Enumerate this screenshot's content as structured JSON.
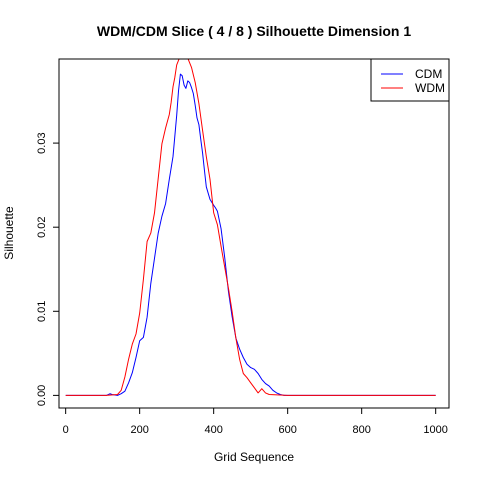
{
  "chart_data": {
    "type": "line",
    "title": "WDM/CDM Slice ( 4 / 8 )  Silhouette Dimension 1",
    "xlabel": "Grid Sequence",
    "ylabel": "Silhouette",
    "xlim": [
      -18,
      1036
    ],
    "ylim": [
      -0.0015,
      0.04
    ],
    "xticks": [
      0,
      200,
      400,
      600,
      800,
      1000
    ],
    "xtick_labels": [
      "0",
      "200",
      "400",
      "600",
      "800",
      "1000"
    ],
    "yticks": [
      0,
      0.01,
      0.02,
      0.03
    ],
    "ytick_labels": [
      "0.00",
      "0.01",
      "0.02",
      "0.03"
    ],
    "grid": false,
    "legend_position": "top-right",
    "series": [
      {
        "name": "CDM",
        "color": "#0000ff",
        "x": [
          0,
          110,
          120,
          125,
          140,
          150,
          160,
          170,
          180,
          190,
          200,
          210,
          220,
          230,
          240,
          250,
          260,
          270,
          280,
          290,
          300,
          305,
          310,
          315,
          320,
          325,
          330,
          335,
          340,
          345,
          350,
          355,
          360,
          365,
          370,
          375,
          380,
          390,
          400,
          405,
          410,
          420,
          430,
          440,
          450,
          460,
          470,
          480,
          490,
          500,
          510,
          520,
          530,
          540,
          550,
          560,
          570,
          580,
          590,
          600,
          700,
          800,
          1000
        ],
        "y": [
          0,
          0,
          0.0002,
          0.0001,
          0,
          0.0002,
          0.0005,
          0.0015,
          0.0027,
          0.0045,
          0.0065,
          0.0069,
          0.0093,
          0.0133,
          0.0163,
          0.0193,
          0.0213,
          0.0228,
          0.0257,
          0.0284,
          0.0333,
          0.0362,
          0.0382,
          0.038,
          0.0369,
          0.0365,
          0.0374,
          0.0372,
          0.0366,
          0.0359,
          0.0345,
          0.033,
          0.0322,
          0.0305,
          0.0288,
          0.0268,
          0.0248,
          0.0233,
          0.0226,
          0.0223,
          0.0219,
          0.0198,
          0.0163,
          0.0123,
          0.0093,
          0.0068,
          0.0055,
          0.0045,
          0.0037,
          0.0033,
          0.0031,
          0.0026,
          0.0019,
          0.0014,
          0.0011,
          0.0006,
          0.0003,
          0.0001,
          0,
          0,
          0,
          0,
          0
        ]
      },
      {
        "name": "WDM",
        "color": "#ff0000",
        "x": [
          0,
          110,
          140,
          150,
          160,
          170,
          180,
          190,
          200,
          210,
          220,
          230,
          240,
          250,
          260,
          270,
          280,
          285,
          290,
          295,
          300,
          310,
          320,
          330,
          340,
          350,
          360,
          370,
          380,
          390,
          400,
          410,
          420,
          430,
          440,
          450,
          460,
          470,
          480,
          490,
          500,
          510,
          520,
          530,
          540,
          550,
          600,
          700,
          800,
          1000
        ],
        "y": [
          0,
          0,
          0.0001,
          0.0006,
          0.0022,
          0.0043,
          0.0061,
          0.0073,
          0.0098,
          0.0138,
          0.0183,
          0.0193,
          0.0217,
          0.0258,
          0.0299,
          0.0318,
          0.0334,
          0.0348,
          0.0367,
          0.0378,
          0.0393,
          0.0404,
          0.0405,
          0.0401,
          0.039,
          0.0372,
          0.0347,
          0.0315,
          0.0284,
          0.0257,
          0.0217,
          0.0203,
          0.0177,
          0.0152,
          0.0127,
          0.0099,
          0.0068,
          0.0043,
          0.0026,
          0.0021,
          0.0015,
          0.0009,
          0.0003,
          0.0008,
          0.0003,
          0.0001,
          0,
          0,
          0,
          0
        ]
      }
    ]
  }
}
